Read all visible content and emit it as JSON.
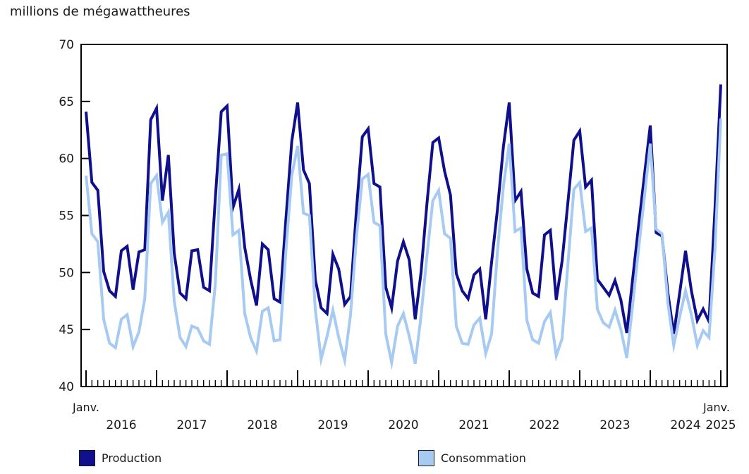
{
  "chart": {
    "title": "millions de mégawattheures",
    "y_axis": {
      "min": 40,
      "max": 70,
      "tick_step": 5,
      "ticks": [
        70,
        65,
        60,
        55,
        50,
        45,
        40
      ]
    },
    "x_axis": {
      "start_label": "Janv.",
      "end_label": "Janv.",
      "years": [
        "2016",
        "2017",
        "2018",
        "2019",
        "2020",
        "2021",
        "2022",
        "2023",
        "2024"
      ],
      "end_year": "2025"
    }
  },
  "legend": {
    "production": "Production",
    "consommation": "Consommation"
  },
  "colors": {
    "production": "#10108c",
    "consommation": "#a6caf1",
    "axis": "#000000",
    "text": "#1a1a1a",
    "background": "#ffffff"
  },
  "chart_data": {
    "type": "line",
    "title": "millions de mégawattheures",
    "x_start": "2016-01",
    "x_end": "2025-01",
    "frequency": "monthly",
    "points_per_series": 109,
    "ylim": [
      40,
      70
    ],
    "grid": false,
    "legend_position": "bottom",
    "series": [
      {
        "name": "Production",
        "color": "#10108c",
        "values": [
          64.1,
          57.9,
          57.2,
          50.1,
          48.4,
          47.9,
          51.9,
          52.3,
          48.5,
          51.8,
          52.0,
          63.4,
          64.4,
          56.3,
          60.3,
          51.7,
          48.2,
          47.7,
          51.9,
          52.0,
          48.7,
          48.4,
          56.5,
          64.1,
          64.6,
          55.7,
          57.3,
          52.2,
          49.4,
          47.1,
          52.5,
          52.0,
          47.7,
          47.4,
          54.6,
          61.5,
          64.9,
          59.0,
          57.8,
          49.4,
          46.9,
          46.4,
          51.6,
          50.3,
          47.2,
          47.9,
          55.4,
          61.9,
          62.6,
          57.8,
          57.5,
          48.7,
          46.9,
          51.0,
          52.7,
          51.1,
          45.9,
          50.0,
          56.0,
          61.4,
          61.8,
          58.9,
          56.8,
          49.9,
          48.4,
          47.7,
          49.8,
          50.3,
          45.9,
          50.9,
          55.5,
          61.0,
          64.9,
          56.3,
          57.1,
          50.3,
          48.2,
          47.9,
          53.3,
          53.7,
          47.6,
          51.0,
          56.2,
          61.6,
          62.4,
          57.5,
          58.1,
          49.4,
          48.7,
          48.0,
          49.3,
          47.6,
          44.7,
          49.4,
          54.0,
          58.5,
          62.9,
          53.5,
          53.2,
          48.2,
          44.6,
          48.2,
          51.9,
          48.4,
          45.8,
          46.8,
          45.7,
          55.5,
          66.5
        ]
      },
      {
        "name": "Consommation",
        "color": "#a6caf1",
        "values": [
          58.5,
          53.4,
          52.7,
          45.9,
          43.8,
          43.4,
          45.9,
          46.3,
          43.5,
          44.8,
          47.7,
          57.8,
          58.5,
          54.4,
          55.3,
          47.5,
          44.3,
          43.5,
          45.3,
          45.1,
          44.0,
          43.7,
          49.0,
          60.3,
          60.4,
          53.3,
          53.7,
          46.4,
          44.3,
          43.1,
          46.6,
          46.9,
          44.0,
          44.1,
          51.8,
          58.5,
          61.1,
          55.2,
          55.0,
          46.8,
          42.4,
          44.4,
          46.7,
          44.3,
          42.3,
          46.3,
          53.0,
          58.2,
          58.6,
          54.4,
          54.1,
          44.6,
          42.1,
          45.3,
          46.4,
          44.4,
          42.0,
          46.2,
          51.4,
          56.3,
          57.2,
          53.4,
          53.0,
          45.3,
          43.8,
          43.7,
          45.4,
          46.0,
          42.9,
          44.6,
          51.8,
          57.5,
          61.3,
          53.6,
          53.9,
          45.8,
          44.1,
          43.8,
          45.7,
          46.5,
          42.7,
          44.2,
          50.8,
          57.3,
          57.9,
          53.6,
          53.9,
          46.8,
          45.6,
          45.2,
          46.7,
          45.0,
          42.5,
          47.1,
          52.0,
          56.6,
          61.3,
          53.8,
          53.4,
          47.3,
          43.6,
          46.1,
          48.4,
          46.3,
          43.6,
          44.9,
          44.3,
          52.0,
          63.5
        ]
      }
    ]
  }
}
